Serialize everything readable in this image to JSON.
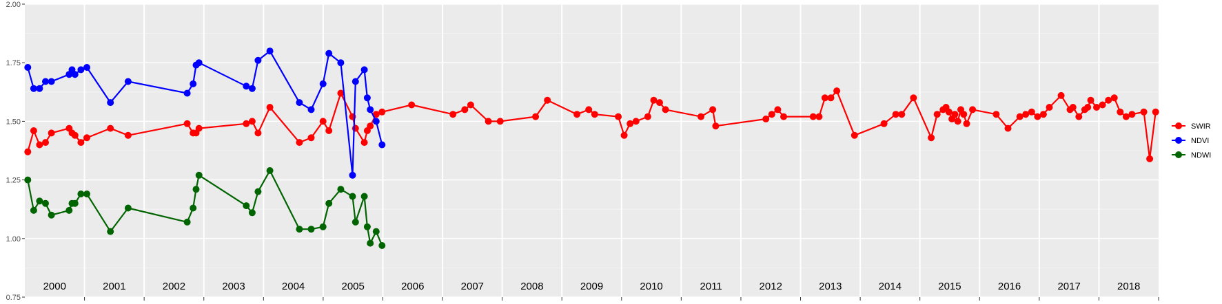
{
  "chart_data": {
    "type": "line",
    "title": "",
    "xlabel": "",
    "ylabel": "",
    "ylim": [
      0.75,
      2.0
    ],
    "yticks": [
      "0.75",
      "1.00",
      "1.25",
      "1.50",
      "1.75",
      "2.00"
    ],
    "grid": true,
    "legend_position": "right",
    "years": [
      "2000",
      "2001",
      "2002",
      "2003",
      "2004",
      "2005",
      "2006",
      "2007",
      "2008",
      "2009",
      "2010",
      "2011",
      "2012",
      "2013",
      "2014",
      "2015",
      "2016",
      "2017",
      "2018"
    ],
    "series": [
      {
        "name": "SWIR",
        "color": "#ff0000",
        "x": [
          2000.0,
          2000.1,
          2000.2,
          2000.3,
          2000.4,
          2000.7,
          2000.75,
          2000.8,
          2000.9,
          2001.0,
          2001.4,
          2001.7,
          2002.7,
          2002.8,
          2002.85,
          2002.9,
          2003.7,
          2003.8,
          2003.9,
          2004.1,
          2004.6,
          2004.8,
          2005.0,
          2005.1,
          2005.3,
          2005.5,
          2005.55,
          2005.7,
          2005.75,
          2005.8,
          2005.9,
          2006.0,
          2006.5,
          2007.2,
          2007.4,
          2007.5,
          2007.8,
          2008.0,
          2008.6,
          2008.8,
          2009.3,
          2009.5,
          2009.6,
          2010.0,
          2010.1,
          2010.2,
          2010.3,
          2010.5,
          2010.6,
          2010.7,
          2010.8,
          2011.4,
          2011.6,
          2011.65,
          2012.5,
          2012.6,
          2012.7,
          2012.8,
          2013.3,
          2013.4,
          2013.5,
          2013.6,
          2013.7,
          2014.0,
          2014.5,
          2014.7,
          2014.8,
          2015.0,
          2015.3,
          2015.4,
          2015.5,
          2015.55,
          2015.6,
          2015.65,
          2015.7,
          2015.75,
          2015.8,
          2015.85,
          2015.9,
          2016.0,
          2016.4,
          2016.6,
          2016.8,
          2016.9,
          2017.0,
          2017.1,
          2017.2,
          2017.3,
          2017.5,
          2017.65,
          2017.7,
          2017.8,
          2017.9,
          2017.95,
          2018.0,
          2018.1,
          2018.2,
          2018.3,
          2018.4,
          2018.5,
          2018.6,
          2018.7,
          2018.9,
          2019.0,
          2019.1
        ],
        "y": [
          1.37,
          1.46,
          1.4,
          1.41,
          1.45,
          1.47,
          1.45,
          1.44,
          1.41,
          1.43,
          1.47,
          1.44,
          1.49,
          1.45,
          1.45,
          1.47,
          1.49,
          1.5,
          1.45,
          1.56,
          1.41,
          1.43,
          1.5,
          1.46,
          1.62,
          1.52,
          1.47,
          1.41,
          1.46,
          1.48,
          1.53,
          1.54,
          1.57,
          1.53,
          1.55,
          1.57,
          1.5,
          1.5,
          1.52,
          1.59,
          1.53,
          1.55,
          1.53,
          1.52,
          1.44,
          1.49,
          1.5,
          1.52,
          1.59,
          1.58,
          1.55,
          1.52,
          1.55,
          1.48,
          1.51,
          1.53,
          1.55,
          1.52,
          1.52,
          1.52,
          1.6,
          1.6,
          1.63,
          1.44,
          1.49,
          1.53,
          1.53,
          1.6,
          1.43,
          1.53,
          1.55,
          1.56,
          1.54,
          1.51,
          1.53,
          1.5,
          1.55,
          1.53,
          1.49,
          1.55,
          1.53,
          1.47,
          1.52,
          1.53,
          1.54,
          1.52,
          1.53,
          1.56,
          1.61,
          1.55,
          1.56,
          1.52,
          1.55,
          1.56,
          1.59,
          1.56,
          1.57,
          1.59,
          1.6,
          1.54,
          1.52,
          1.53,
          1.54,
          1.34,
          1.54
        ]
      },
      {
        "name": "NDVI",
        "color": "#0000ff",
        "x": [
          2000.0,
          2000.1,
          2000.2,
          2000.3,
          2000.4,
          2000.7,
          2000.75,
          2000.8,
          2000.9,
          2001.0,
          2001.4,
          2001.7,
          2002.7,
          2002.8,
          2002.85,
          2002.9,
          2003.7,
          2003.8,
          2003.9,
          2004.1,
          2004.6,
          2004.8,
          2005.0,
          2005.1,
          2005.3,
          2005.5,
          2005.55,
          2005.7,
          2005.75,
          2005.8,
          2005.9,
          2006.0
        ],
        "y": [
          1.73,
          1.64,
          1.64,
          1.67,
          1.67,
          1.7,
          1.72,
          1.7,
          1.72,
          1.73,
          1.58,
          1.67,
          1.62,
          1.66,
          1.74,
          1.75,
          1.65,
          1.64,
          1.76,
          1.8,
          1.58,
          1.55,
          1.66,
          1.79,
          1.75,
          1.27,
          1.67,
          1.72,
          1.6,
          1.55,
          1.5,
          1.4
        ]
      },
      {
        "name": "NDWI",
        "color": "#006400",
        "x": [
          2000.0,
          2000.1,
          2000.2,
          2000.3,
          2000.4,
          2000.7,
          2000.75,
          2000.8,
          2000.9,
          2001.0,
          2001.4,
          2001.7,
          2002.7,
          2002.8,
          2002.85,
          2002.9,
          2003.7,
          2003.8,
          2003.9,
          2004.1,
          2004.6,
          2004.8,
          2005.0,
          2005.1,
          2005.3,
          2005.5,
          2005.55,
          2005.7,
          2005.75,
          2005.8,
          2005.9,
          2006.0
        ],
        "y": [
          1.25,
          1.12,
          1.16,
          1.15,
          1.1,
          1.12,
          1.15,
          1.15,
          1.19,
          1.19,
          1.03,
          1.13,
          1.07,
          1.13,
          1.21,
          1.27,
          1.14,
          1.11,
          1.2,
          1.29,
          1.04,
          1.04,
          1.05,
          1.15,
          1.21,
          1.18,
          1.07,
          1.18,
          1.05,
          0.98,
          1.03,
          0.97
        ]
      }
    ]
  }
}
